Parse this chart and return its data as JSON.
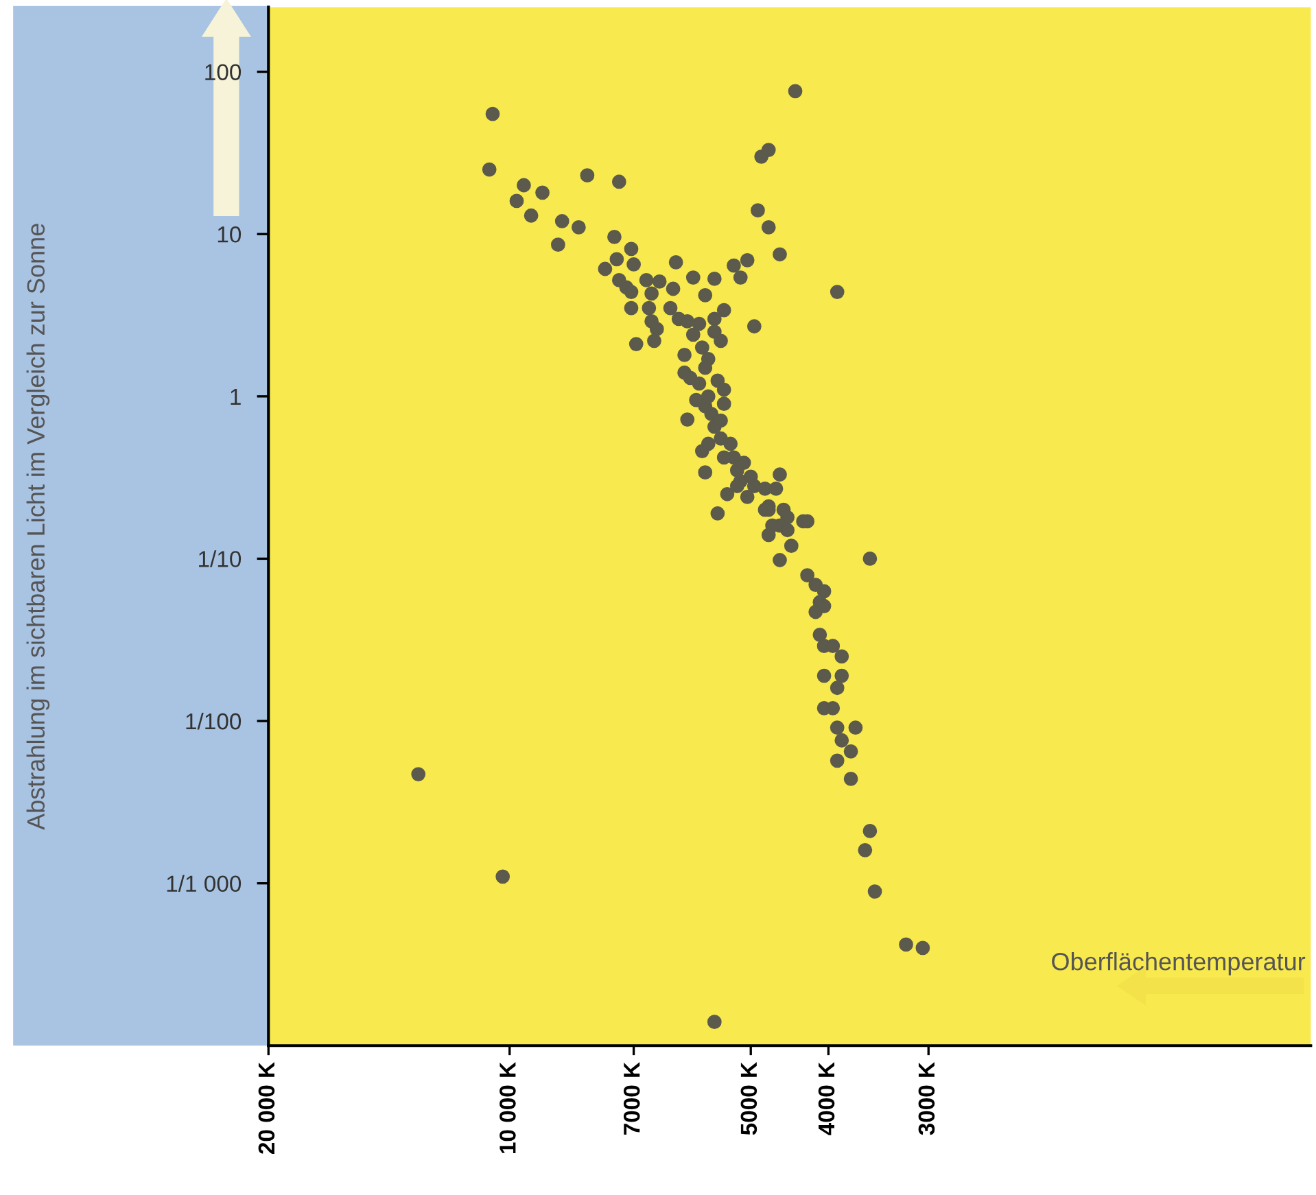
{
  "chart_data": {
    "type": "scatter",
    "ylabel": "Abstrahlung im sichtbaren Licht im Vergleich zur Sonne",
    "xlabel": "Oberflächentemperatur",
    "x": [
      10500,
      10600,
      9600,
      9100,
      9800,
      9400,
      8600,
      8200,
      8700,
      8000,
      7300,
      4400,
      4850,
      4750,
      4900,
      4750,
      4600,
      5050,
      5150,
      5250,
      3900,
      4950,
      3550,
      7400,
      7050,
      7000,
      7350,
      7600,
      7300,
      7150,
      7050,
      6750,
      6500,
      6650,
      6700,
      6650,
      6550,
      6600,
      7050,
      6950,
      6250,
      6200,
      5900,
      6300,
      6150,
      6000,
      5800,
      5900,
      5700,
      5550,
      5400,
      5550,
      5550,
      5450,
      6050,
      5750,
      5650,
      5700,
      6050,
      5950,
      5800,
      5650,
      5500,
      5400,
      5850,
      6000,
      5700,
      5600,
      5550,
      5450,
      5400,
      5650,
      5750,
      5450,
      5700,
      5500,
      5300,
      5250,
      5400,
      5200,
      5100,
      5000,
      5150,
      5350,
      5200,
      4950,
      5050,
      4800,
      4750,
      4600,
      4650,
      4800,
      4750,
      4550,
      4500,
      4600,
      4700,
      4500,
      4750,
      4450,
      4600,
      4300,
      4250,
      4250,
      4150,
      4050,
      4100,
      4050,
      4150,
      4100,
      4050,
      3950,
      3850,
      4050,
      3850,
      3900,
      4050,
      3950,
      3900,
      3700,
      3850,
      3750,
      3900,
      3750,
      3550,
      3600,
      3500,
      3200,
      3050,
      13000,
      10200,
      5550
    ],
    "values": [
      55,
      25,
      20,
      18,
      16,
      13,
      12,
      11,
      8.6,
      23,
      21,
      76,
      30,
      33,
      14,
      11,
      7.5,
      6.9,
      5.4,
      6.4,
      4.4,
      2.7,
      0.1,
      9.6,
      8.1,
      6.5,
      7.0,
      6.1,
      5.2,
      4.7,
      4.4,
      5.2,
      5.1,
      4.3,
      3.5,
      2.9,
      2.6,
      2.2,
      3.5,
      2.1,
      4.6,
      6.7,
      5.4,
      3.5,
      3.0,
      2.9,
      2.8,
      2.4,
      4.2,
      5.3,
      3.4,
      3.0,
      2.5,
      2.2,
      1.8,
      2.0,
      1.7,
      1.5,
      1.4,
      1.3,
      1.2,
      1.0,
      1.25,
      1.1,
      0.95,
      0.72,
      0.87,
      0.78,
      0.65,
      0.71,
      0.9,
      0.51,
      0.46,
      0.55,
      0.34,
      0.19,
      0.51,
      0.42,
      0.42,
      0.35,
      0.39,
      0.32,
      0.3,
      0.25,
      0.28,
      0.28,
      0.24,
      0.27,
      0.21,
      0.33,
      0.27,
      0.2,
      0.2,
      0.2,
      0.18,
      0.16,
      0.16,
      0.15,
      0.14,
      0.12,
      0.098,
      0.17,
      0.17,
      0.079,
      0.069,
      0.063,
      0.054,
      0.051,
      0.047,
      0.034,
      0.029,
      0.029,
      0.025,
      0.019,
      0.019,
      0.016,
      0.012,
      0.012,
      0.0091,
      0.0091,
      0.0076,
      0.0065,
      0.0057,
      0.0044,
      0.0021,
      0.0016,
      0.00089,
      0.00042,
      0.0004,
      0.0047,
      0.0011,
      0.00014
    ],
    "color": "#5b5a4c",
    "marker": "circle",
    "log": "xy",
    "xlim": [
      20000,
      1000
    ],
    "xticks": [
      {
        "value": 20000,
        "label": "20 000 K"
      },
      {
        "value": 10000,
        "label": "10 000 K"
      },
      {
        "value": 7000,
        "label": "7000 K"
      },
      {
        "value": 5000,
        "label": "5000 K"
      },
      {
        "value": 4000,
        "label": "4000 K"
      },
      {
        "value": 3000,
        "label": "3000 K"
      }
    ],
    "ylim": [
      0.0001,
      250
    ],
    "yticks": [
      100,
      10,
      1,
      {
        "value": 0.1,
        "label": "1/10"
      },
      {
        "value": 0.01,
        "label": "1/100"
      },
      {
        "value": 0.001,
        "label": "1/1 000"
      }
    ],
    "grid": false,
    "legend": false
  }
}
